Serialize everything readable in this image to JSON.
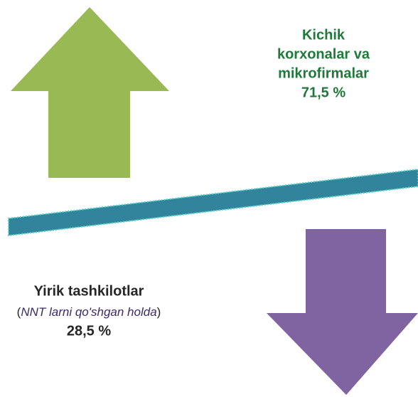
{
  "top": {
    "label_lines": [
      "Kichik",
      "korxonalar va",
      "mikrofirmalar"
    ],
    "value": "71,5 %"
  },
  "bottom": {
    "label": "Yirik tashkilotlar",
    "note": [
      "(",
      "NNT larni qo'shgan holda",
      ")"
    ],
    "value": "28,5 %"
  }
}
